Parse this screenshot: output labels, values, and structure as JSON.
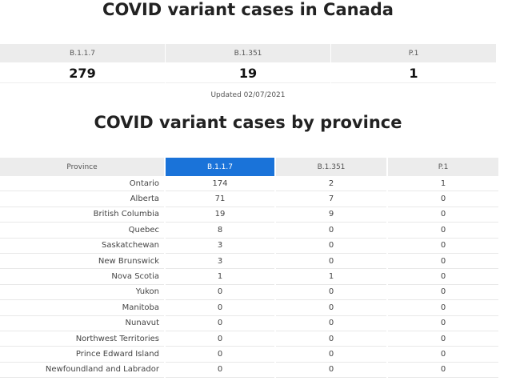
{
  "summary": {
    "title": "COVID variant cases in Canada",
    "headers": [
      "B.1.1.7",
      "B.1.351",
      "P.1"
    ],
    "values": [
      279,
      19,
      1
    ],
    "updated": "Updated 02/07/2021"
  },
  "provinces": {
    "title": "COVID variant cases by province",
    "headers": [
      "Province",
      "B.1.1.7",
      "B.1.351",
      "P.1"
    ],
    "rows": [
      [
        "Ontario",
        174,
        2,
        1
      ],
      [
        "Alberta",
        71,
        7,
        0
      ],
      [
        "British Columbia",
        19,
        9,
        0
      ],
      [
        "Quebec",
        8,
        0,
        0
      ],
      [
        "Saskatchewan",
        3,
        0,
        0
      ],
      [
        "New Brunswick",
        3,
        0,
        0
      ],
      [
        "Nova Scotia",
        1,
        1,
        0
      ],
      [
        "Yukon",
        0,
        0,
        0
      ],
      [
        "Manitoba",
        0,
        0,
        0
      ],
      [
        "Nunavut",
        0,
        0,
        0
      ],
      [
        "Northwest Territories",
        0,
        0,
        0
      ],
      [
        "Prince Edward Island",
        0,
        0,
        0
      ],
      [
        "Newfoundland and Labrador",
        0,
        0,
        0
      ]
    ]
  }
}
